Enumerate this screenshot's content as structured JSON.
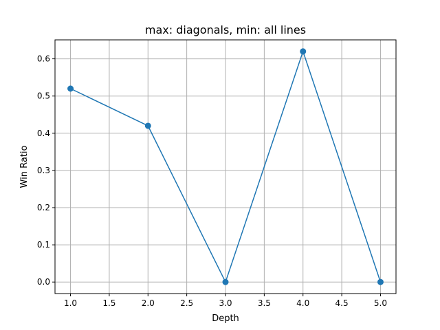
{
  "chart_data": {
    "type": "line",
    "title": "max: diagonals, min: all lines",
    "xlabel": "Depth",
    "ylabel": "Win Ratio",
    "x": [
      1.0,
      2.0,
      3.0,
      4.0,
      5.0
    ],
    "series": [
      {
        "values": [
          0.52,
          0.42,
          0.0,
          0.62,
          0.0
        ],
        "color": "#1f77b4",
        "marker": "circle"
      }
    ],
    "xticks": [
      "1.0",
      "1.5",
      "2.0",
      "2.5",
      "3.0",
      "3.5",
      "4.0",
      "4.5",
      "5.0"
    ],
    "yticks": [
      "0.0",
      "0.1",
      "0.2",
      "0.3",
      "0.4",
      "0.5",
      "0.6"
    ],
    "xlim": [
      0.8,
      5.2
    ],
    "ylim": [
      -0.031,
      0.651
    ],
    "grid": true
  }
}
